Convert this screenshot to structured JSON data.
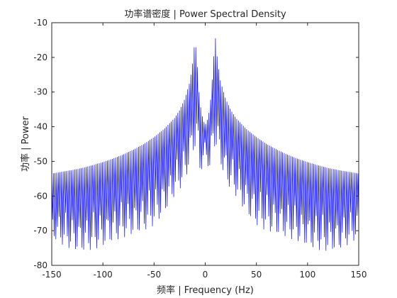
{
  "chart_data": {
    "type": "line",
    "title": "功率谱密度 | Power Spectral Density",
    "xlabel": "频率 | Frequency (Hz)",
    "ylabel": "功率 | Power",
    "xlim": [
      -150,
      150
    ],
    "ylim": [
      -80,
      -10
    ],
    "xticks": [
      "-150",
      "-100",
      "-50",
      "0",
      "50",
      "100",
      "150"
    ],
    "yticks": [
      "-10",
      "-20",
      "-30",
      "-40",
      "-50",
      "-60",
      "-70",
      "-80"
    ],
    "grid": false,
    "line_color": "#0000ff",
    "series": [
      {
        "points": [
          [
            -150,
            -53.5
          ],
          [
            -140,
            -53.0
          ],
          [
            -130,
            -52.5
          ],
          [
            -120,
            -51.9
          ],
          [
            -110,
            -51.1
          ],
          [
            -100,
            -50.2
          ],
          [
            -90,
            -49.2
          ],
          [
            -80,
            -48.0
          ],
          [
            -70,
            -46.6
          ],
          [
            -60,
            -45.0
          ],
          [
            -50,
            -43.0
          ],
          [
            -40,
            -40.6
          ],
          [
            -30,
            -37.5
          ],
          [
            -25,
            -35.2
          ],
          [
            -20,
            -32.0
          ],
          [
            -15,
            -27.0
          ],
          [
            -12,
            -21.0
          ],
          [
            -10,
            -14.5
          ],
          [
            -8,
            -21.0
          ],
          [
            -6,
            -30.0
          ],
          [
            -4,
            -35.5
          ],
          [
            -2,
            -38.0
          ],
          [
            0,
            -39.5
          ],
          [
            2,
            -38.0
          ],
          [
            4,
            -35.5
          ],
          [
            6,
            -30.0
          ],
          [
            8,
            -21.0
          ],
          [
            10,
            -14.5
          ],
          [
            12,
            -21.0
          ],
          [
            15,
            -27.0
          ],
          [
            20,
            -32.0
          ],
          [
            25,
            -35.2
          ],
          [
            30,
            -37.5
          ],
          [
            40,
            -40.6
          ],
          [
            50,
            -43.0
          ],
          [
            60,
            -45.0
          ],
          [
            70,
            -46.6
          ],
          [
            80,
            -48.0
          ],
          [
            90,
            -49.2
          ],
          [
            100,
            -50.2
          ],
          [
            110,
            -51.1
          ],
          [
            120,
            -51.9
          ],
          [
            130,
            -52.5
          ],
          [
            140,
            -53.0
          ],
          [
            150,
            -53.5
          ]
        ],
        "trough_points": [
          [
            -150,
            -72.0
          ],
          [
            -140,
            -74.0
          ],
          [
            -130,
            -75.5
          ],
          [
            -120,
            -76.0
          ],
          [
            -110,
            -75.5
          ],
          [
            -100,
            -74.5
          ],
          [
            -90,
            -73.0
          ],
          [
            -80,
            -72.0
          ],
          [
            -70,
            -71.0
          ],
          [
            -60,
            -70.0
          ],
          [
            -50,
            -68.5
          ],
          [
            -40,
            -65.0
          ],
          [
            -30,
            -60.0
          ],
          [
            -20,
            -56.0
          ],
          [
            -12,
            -48.0
          ],
          [
            -8,
            -45.0
          ],
          [
            -5,
            -54.0
          ],
          [
            0,
            -48.0
          ],
          [
            5,
            -54.0
          ],
          [
            8,
            -45.0
          ],
          [
            12,
            -48.0
          ],
          [
            20,
            -56.0
          ],
          [
            30,
            -60.0
          ],
          [
            40,
            -65.0
          ],
          [
            50,
            -68.5
          ],
          [
            60,
            -70.0
          ],
          [
            70,
            -71.0
          ],
          [
            80,
            -72.0
          ],
          [
            90,
            -73.0
          ],
          [
            100,
            -74.5
          ],
          [
            110,
            -75.5
          ],
          [
            120,
            -76.0
          ],
          [
            130,
            -75.5
          ],
          [
            140,
            -74.0
          ],
          [
            150,
            -72.0
          ]
        ]
      }
    ]
  }
}
